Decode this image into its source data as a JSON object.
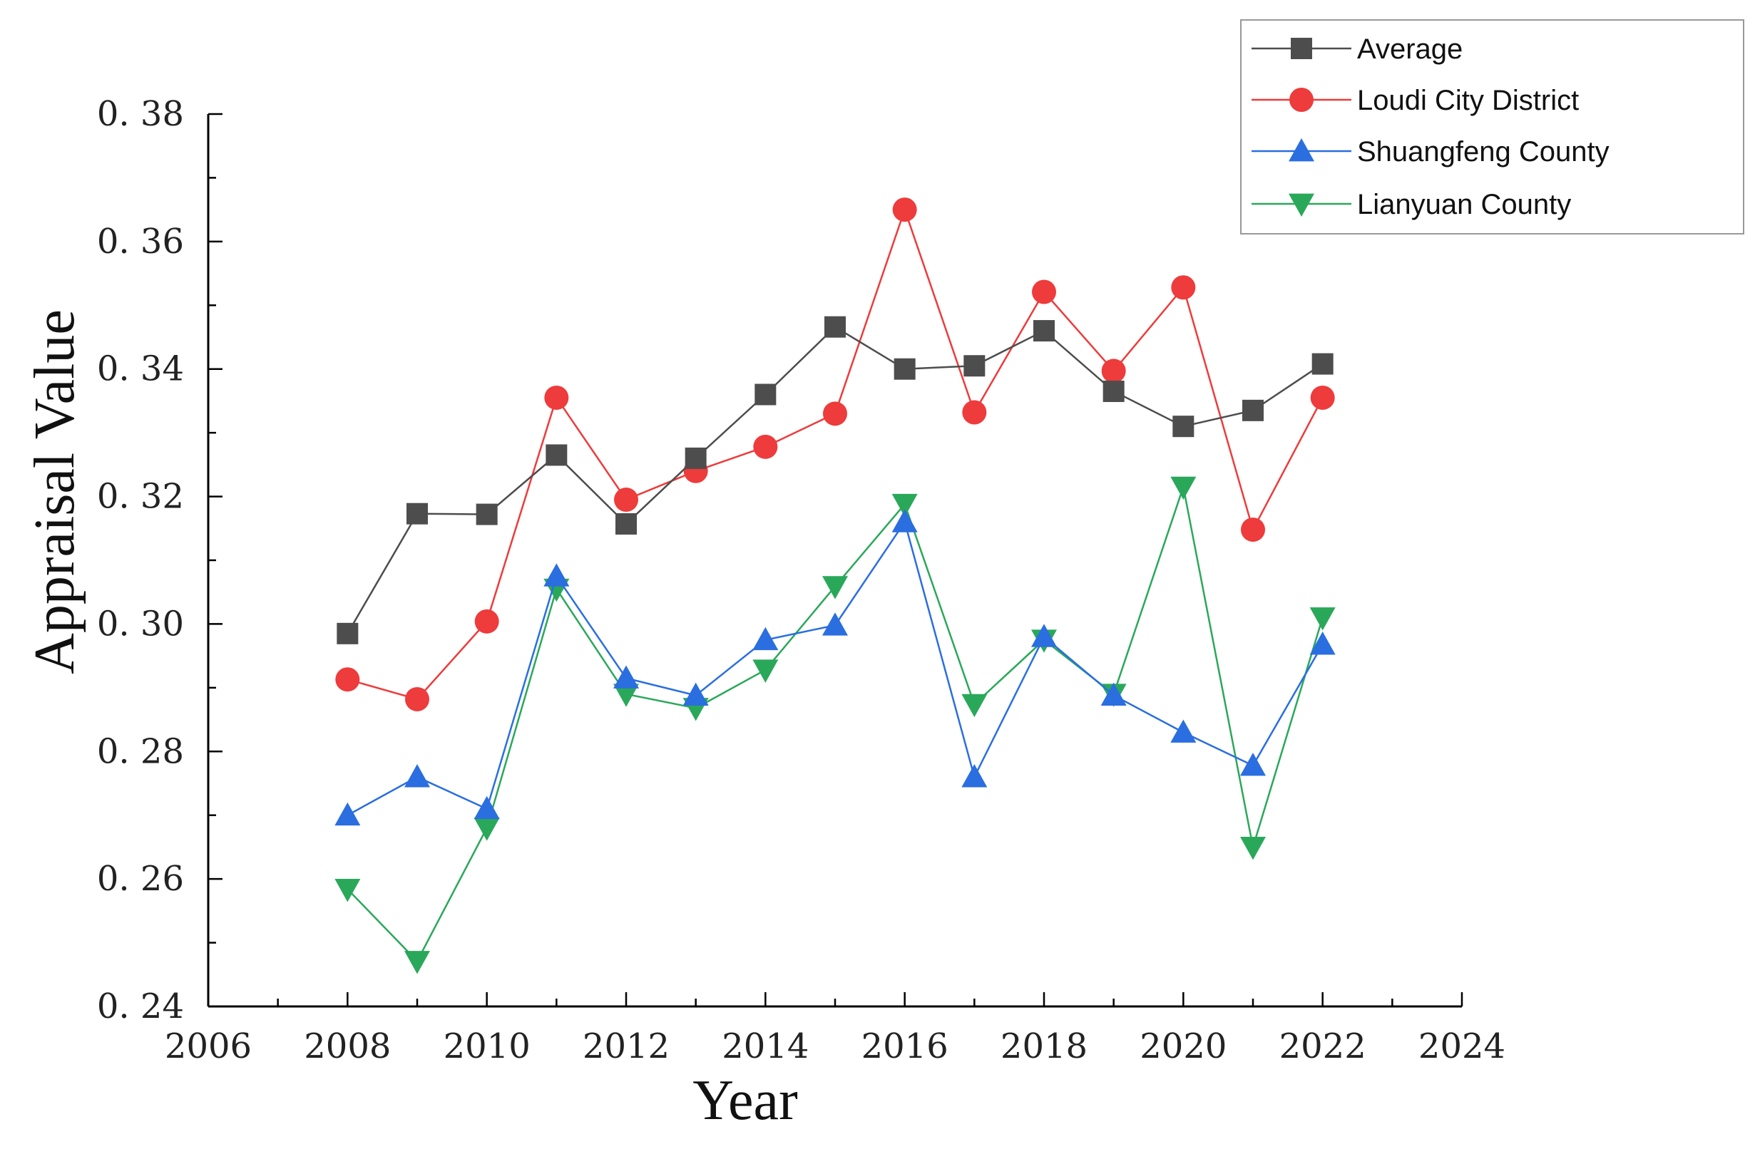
{
  "chart_data": {
    "type": "line",
    "title": "",
    "xlabel": "Year",
    "ylabel": "Appraisal Value",
    "xlim": [
      2006,
      2024
    ],
    "ylim": [
      0.24,
      0.38
    ],
    "xticks": [
      "2006",
      "2008",
      "2010",
      "2012",
      "2014",
      "2016",
      "2018",
      "2020",
      "2022",
      "2024"
    ],
    "yticks": [
      "0. 24",
      "0. 26",
      "0. 28",
      "0. 30",
      "0. 32",
      "0. 34",
      "0. 36",
      "0. 38"
    ],
    "legend_position": "top-right",
    "x": [
      2008,
      2009,
      2010,
      2011,
      2012,
      2013,
      2014,
      2015,
      2016,
      2017,
      2018,
      2019,
      2020,
      2021,
      2022
    ],
    "series": [
      {
        "name": "Average",
        "color": "#4d4d4d",
        "marker": "square",
        "values": [
          0.2985,
          0.3173,
          0.3172,
          0.3265,
          0.3157,
          0.326,
          0.336,
          0.3466,
          0.34,
          0.3405,
          0.346,
          0.3365,
          0.331,
          0.3335,
          0.3408
        ]
      },
      {
        "name": "Loudi City District",
        "color": "#ee3b3b",
        "marker": "circle",
        "values": [
          0.2913,
          0.2882,
          0.3004,
          0.3355,
          0.3195,
          0.324,
          0.3278,
          0.333,
          0.365,
          0.3332,
          0.3521,
          0.3397,
          0.3528,
          0.3148,
          0.3355
        ]
      },
      {
        "name": "Shuangfeng County",
        "color": "#2a6ee0",
        "marker": "triangle-up",
        "values": [
          0.27,
          0.276,
          0.271,
          0.3075,
          0.2915,
          0.2888,
          0.2975,
          0.2998,
          0.316,
          0.276,
          0.298,
          0.2888,
          0.283,
          0.2778,
          0.2968
        ]
      },
      {
        "name": "Lianyuan County",
        "color": "#2aa85a",
        "marker": "triangle-down",
        "values": [
          0.2584,
          0.2471,
          0.268,
          0.3055,
          0.289,
          0.2868,
          0.2928,
          0.3059,
          0.3188,
          0.2874,
          0.2975,
          0.289,
          0.3215,
          0.265,
          0.301
        ]
      }
    ]
  }
}
